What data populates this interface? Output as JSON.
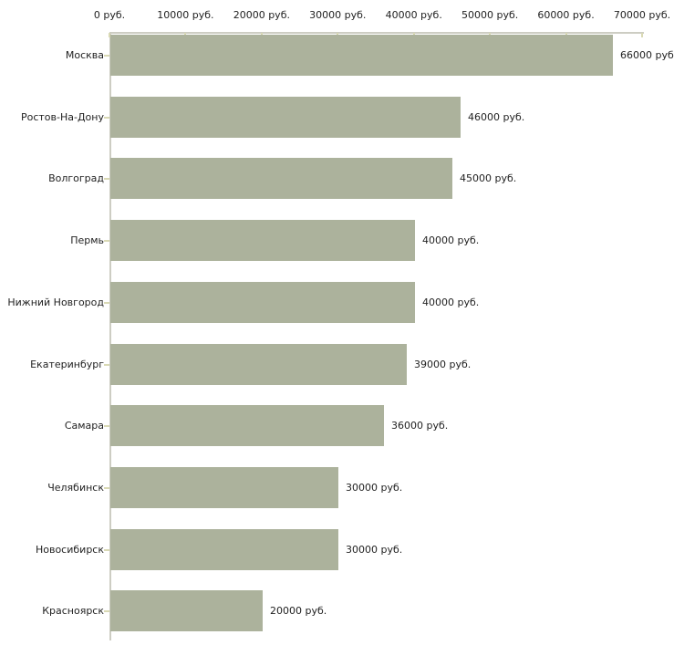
{
  "chart_data": {
    "type": "bar",
    "orientation": "horizontal",
    "title": "",
    "xlabel": "",
    "ylabel": "",
    "grid": false,
    "legend": false,
    "categories": [
      "Москва",
      "Ростов-На-Дону",
      "Волгоград",
      "Пермь",
      "Нижний Новгород",
      "Екатеринбург",
      "Самара",
      "Челябинск",
      "Новосибирск",
      "Красноярск"
    ],
    "values": [
      66000,
      46000,
      45000,
      40000,
      40000,
      39000,
      36000,
      30000,
      30000,
      20000
    ],
    "value_labels": [
      "66000 руб",
      "46000 руб.",
      "45000 руб.",
      "40000 руб.",
      "40000 руб.",
      "39000 руб.",
      "36000 руб.",
      "30000 руб.",
      "30000 руб.",
      "20000 руб."
    ],
    "x_axis": {
      "position": "top",
      "min": 0,
      "max": 70000,
      "ticks": [
        0,
        10000,
        20000,
        30000,
        40000,
        50000,
        60000,
        70000
      ],
      "tick_labels": [
        "0 руб.",
        "10000 руб.",
        "20000 руб.",
        "30000 руб.",
        "40000 руб.",
        "50000 руб.",
        "60000 руб.",
        "70000 руб."
      ]
    },
    "colors": {
      "bar": "#acb29c",
      "axis_line": "#cdcdc3",
      "tick": "#d9d9b4",
      "text": "#222222",
      "background": "#ffffff"
    }
  }
}
